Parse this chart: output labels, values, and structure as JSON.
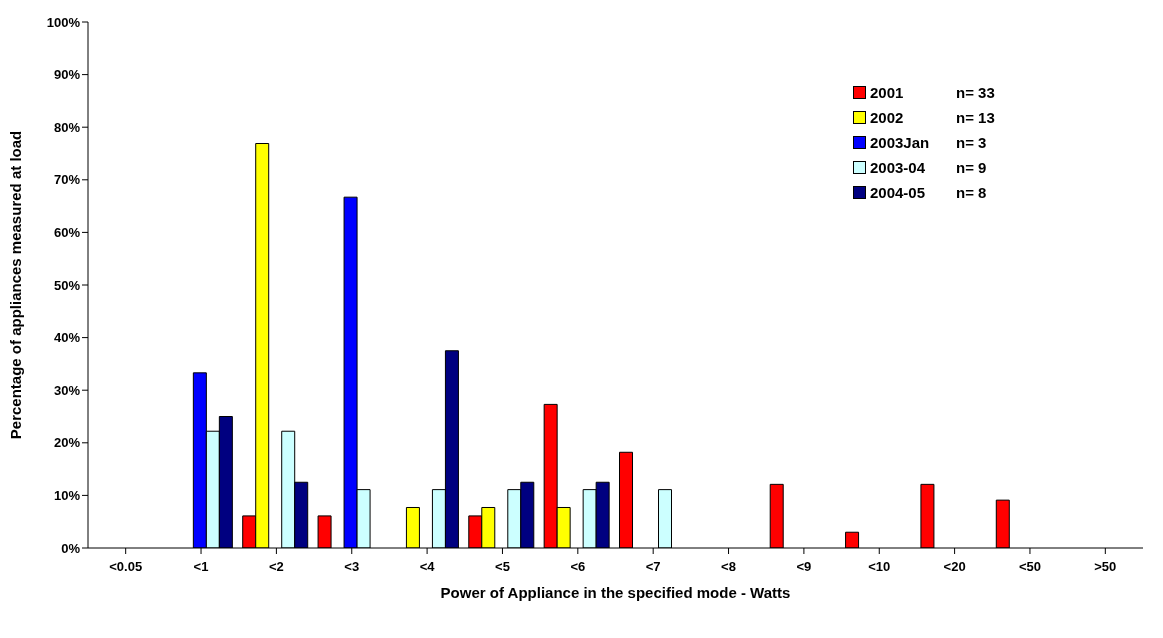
{
  "chart_data": {
    "type": "bar",
    "xlabel": "Power of Appliance in the specified mode - Watts",
    "ylabel": "Percentage of appliances measured at load",
    "categories": [
      "<0.05",
      "<1",
      "<2",
      "<3",
      "<4",
      "<5",
      "<6",
      "<7",
      "<8",
      "<9",
      "<10",
      "<20",
      "<50",
      ">50"
    ],
    "series": [
      {
        "name": "2001",
        "color": "#ff0000",
        "values": [
          0,
          0,
          6.1,
          6.1,
          0,
          6.1,
          27.3,
          18.2,
          0,
          12.1,
          3.0,
          12.1,
          9.1,
          0
        ]
      },
      {
        "name": "2002",
        "color": "#ffff00",
        "values": [
          0,
          0,
          76.9,
          0,
          7.7,
          7.7,
          7.7,
          0,
          0,
          0,
          0,
          0,
          0,
          0
        ]
      },
      {
        "name": "2003Jan",
        "color": "#0000ff",
        "values": [
          0,
          33.3,
          0,
          66.7,
          0,
          0,
          0,
          0,
          0,
          0,
          0,
          0,
          0,
          0
        ]
      },
      {
        "name": "2003-04",
        "color": "#ccffff",
        "values": [
          0,
          22.2,
          22.2,
          11.1,
          11.1,
          11.1,
          11.1,
          11.1,
          0,
          0,
          0,
          0,
          0,
          0
        ]
      },
      {
        "name": "2004-05",
        "color": "#000080",
        "values": [
          0,
          25,
          12.5,
          0,
          37.5,
          12.5,
          12.5,
          0,
          0,
          0,
          0,
          0,
          0,
          0
        ]
      }
    ],
    "annotations": [
      "n= 33",
      "n= 13",
      "n= 3",
      "n= 9",
      "n= 8"
    ],
    "ylim": [
      0,
      100
    ],
    "yticks": [
      {
        "value": 0,
        "label": "0%"
      },
      {
        "value": 10,
        "label": "10%"
      },
      {
        "value": 20,
        "label": "20%"
      },
      {
        "value": 30,
        "label": "30%"
      },
      {
        "value": 40,
        "label": "40%"
      },
      {
        "value": 50,
        "label": "50%"
      },
      {
        "value": 60,
        "label": "60%"
      },
      {
        "value": 70,
        "label": "70%"
      },
      {
        "value": 80,
        "label": "80%"
      },
      {
        "value": 90,
        "label": "90%"
      },
      {
        "value": 100,
        "label": "100%"
      }
    ],
    "grid": false,
    "legend": "top right"
  }
}
